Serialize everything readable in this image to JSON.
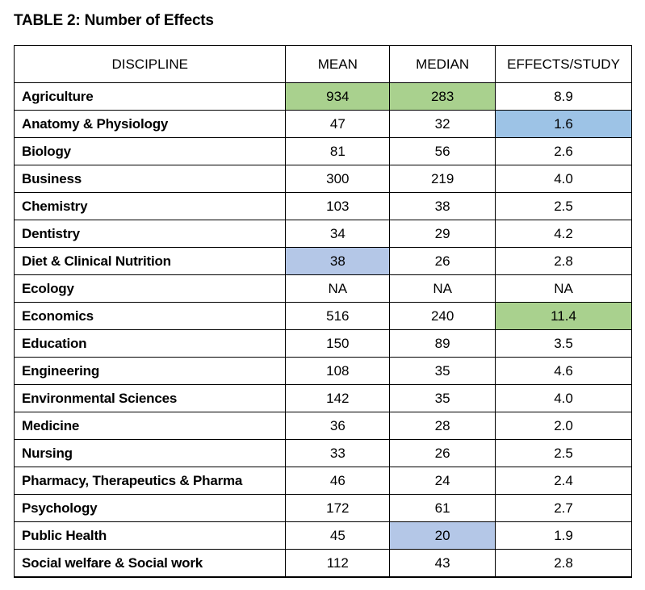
{
  "title": "TABLE 2: Number of Effects",
  "colors": {
    "green": "#a9d18e",
    "blue": "#9dc3e6",
    "lightblue": "#b4c7e7"
  },
  "headers": [
    "DISCIPLINE",
    "MEAN",
    "MEDIAN",
    "EFFECTS/STUDY"
  ],
  "rows": [
    {
      "discipline": "Agriculture",
      "mean": "934",
      "median": "283",
      "effects": "8.9",
      "hl": {
        "mean": "green",
        "median": "green"
      }
    },
    {
      "discipline": "Anatomy & Physiology",
      "mean": "47",
      "median": "32",
      "effects": "1.6",
      "hl": {
        "effects": "blue"
      }
    },
    {
      "discipline": "Biology",
      "mean": "81",
      "median": "56",
      "effects": "2.6"
    },
    {
      "discipline": "Business",
      "mean": "300",
      "median": "219",
      "effects": "4.0"
    },
    {
      "discipline": "Chemistry",
      "mean": "103",
      "median": "38",
      "effects": "2.5"
    },
    {
      "discipline": "Dentistry",
      "mean": "34",
      "median": "29",
      "effects": "4.2"
    },
    {
      "discipline": "Diet & Clinical Nutrition",
      "mean": "38",
      "median": "26",
      "effects": "2.8",
      "hl": {
        "mean": "lightblue"
      }
    },
    {
      "discipline": "Ecology",
      "mean": "NA",
      "median": "NA",
      "effects": "NA"
    },
    {
      "discipline": "Economics",
      "mean": "516",
      "median": "240",
      "effects": "11.4",
      "hl": {
        "effects": "green"
      }
    },
    {
      "discipline": "Education",
      "mean": "150",
      "median": "89",
      "effects": "3.5"
    },
    {
      "discipline": "Engineering",
      "mean": "108",
      "median": "35",
      "effects": "4.6"
    },
    {
      "discipline": "Environmental Sciences",
      "mean": "142",
      "median": "35",
      "effects": "4.0"
    },
    {
      "discipline": "Medicine",
      "mean": "36",
      "median": "28",
      "effects": "2.0"
    },
    {
      "discipline": "Nursing",
      "mean": "33",
      "median": "26",
      "effects": "2.5"
    },
    {
      "discipline": "Pharmacy, Therapeutics & Pharma",
      "mean": "46",
      "median": "24",
      "effects": "2.4"
    },
    {
      "discipline": "Psychology",
      "mean": "172",
      "median": "61",
      "effects": "2.7"
    },
    {
      "discipline": "Public Health",
      "mean": "45",
      "median": "20",
      "effects": "1.9",
      "hl": {
        "median": "lightblue"
      }
    },
    {
      "discipline": "Social welfare & Social work",
      "mean": "112",
      "median": "43",
      "effects": "2.8"
    }
  ]
}
